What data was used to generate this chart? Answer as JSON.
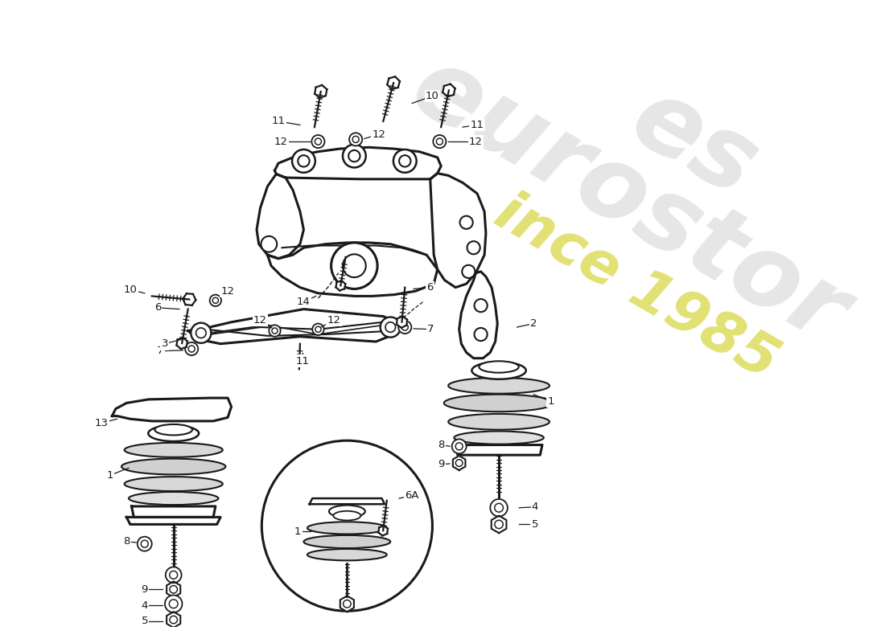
{
  "bg": "#ffffff",
  "lc": "#1a1a1a",
  "fig_w": 11.0,
  "fig_h": 8.0,
  "dpi": 100,
  "wm1_text": "eurostor",
  "wm2_text": "es",
  "wm3_text": "ince 1985",
  "wm_gray": "#c8c8c8",
  "wm_yellow": "#c8c800",
  "wm_alpha": 0.45,
  "wm_rot": -30,
  "wm_fontsize": 90
}
